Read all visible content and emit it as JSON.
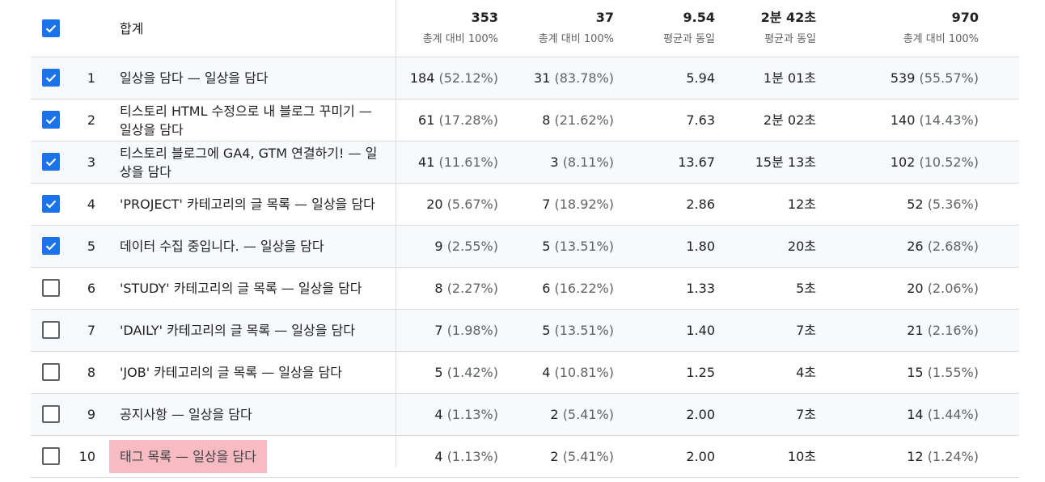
{
  "header": {
    "label": "합계",
    "totals": [
      {
        "value": "353",
        "sub": "총계 대비 100%"
      },
      {
        "value": "37",
        "sub": "총계 대비 100%"
      },
      {
        "value": "9.54",
        "sub": "평균과 동일"
      },
      {
        "value": "2분 42초",
        "sub": "평균과 동일"
      },
      {
        "value": "970",
        "sub": "총계 대비 100%"
      }
    ]
  },
  "rows": [
    {
      "idx": "1",
      "title": "일상을 담다 — 일상을 담다",
      "c1": "184",
      "c1p": "(52.12%)",
      "c2": "31",
      "c2p": "(83.78%)",
      "c3": "5.94",
      "c4": "1분 01초",
      "c5": "539",
      "c5p": "(55.57%)"
    },
    {
      "idx": "2",
      "title": "티스토리 HTML 수정으로 내 블로그 꾸미기 — 일상을 담다",
      "c1": "61",
      "c1p": "(17.28%)",
      "c2": "8",
      "c2p": "(21.62%)",
      "c3": "7.63",
      "c4": "2분 02초",
      "c5": "140",
      "c5p": "(14.43%)"
    },
    {
      "idx": "3",
      "title": "티스토리 블로그에 GA4, GTM 연결하기! — 일상을 담다",
      "c1": "41",
      "c1p": "(11.61%)",
      "c2": "3",
      "c2p": "(8.11%)",
      "c3": "13.67",
      "c4": "15분 13초",
      "c5": "102",
      "c5p": "(10.52%)"
    },
    {
      "idx": "4",
      "title": "'PROJECT' 카테고리의 글 목록 — 일상을 담다",
      "c1": "20",
      "c1p": "(5.67%)",
      "c2": "7",
      "c2p": "(18.92%)",
      "c3": "2.86",
      "c4": "12초",
      "c5": "52",
      "c5p": "(5.36%)"
    },
    {
      "idx": "5",
      "title": "데이터 수집 중입니다. — 일상을 담다",
      "c1": "9",
      "c1p": "(2.55%)",
      "c2": "5",
      "c2p": "(13.51%)",
      "c3": "1.80",
      "c4": "20초",
      "c5": "26",
      "c5p": "(2.68%)"
    },
    {
      "idx": "6",
      "title": "'STUDY' 카테고리의 글 목록 — 일상을 담다",
      "c1": "8",
      "c1p": "(2.27%)",
      "c2": "6",
      "c2p": "(16.22%)",
      "c3": "1.33",
      "c4": "5초",
      "c5": "20",
      "c5p": "(2.06%)"
    },
    {
      "idx": "7",
      "title": "'DAILY' 카테고리의 글 목록 — 일상을 담다",
      "c1": "7",
      "c1p": "(1.98%)",
      "c2": "5",
      "c2p": "(13.51%)",
      "c3": "1.40",
      "c4": "7초",
      "c5": "21",
      "c5p": "(2.16%)"
    },
    {
      "idx": "8",
      "title": "'JOB' 카테고리의 글 목록 — 일상을 담다",
      "c1": "5",
      "c1p": "(1.42%)",
      "c2": "4",
      "c2p": "(10.81%)",
      "c3": "1.25",
      "c4": "4초",
      "c5": "15",
      "c5p": "(1.55%)"
    },
    {
      "idx": "9",
      "title": "공지사항 — 일상을 담다",
      "c1": "4",
      "c1p": "(1.13%)",
      "c2": "2",
      "c2p": "(5.41%)",
      "c3": "2.00",
      "c4": "7초",
      "c5": "14",
      "c5p": "(1.44%)"
    },
    {
      "idx": "10",
      "title": "태그 목록 — 일상을 담다",
      "c1": "4",
      "c1p": "(1.13%)",
      "c2": "2",
      "c2p": "(5.41%)",
      "c3": "2.00",
      "c4": "10초",
      "c5": "12",
      "c5p": "(1.24%)"
    }
  ],
  "checked": [
    true,
    true,
    true,
    true,
    true,
    true,
    false,
    false,
    false,
    false,
    false
  ],
  "highlight_row": 9,
  "colors": {
    "checkbox_on": "#1a73e8",
    "highlight": "#f8bbc3",
    "row_shade": "#f8f9fa"
  }
}
